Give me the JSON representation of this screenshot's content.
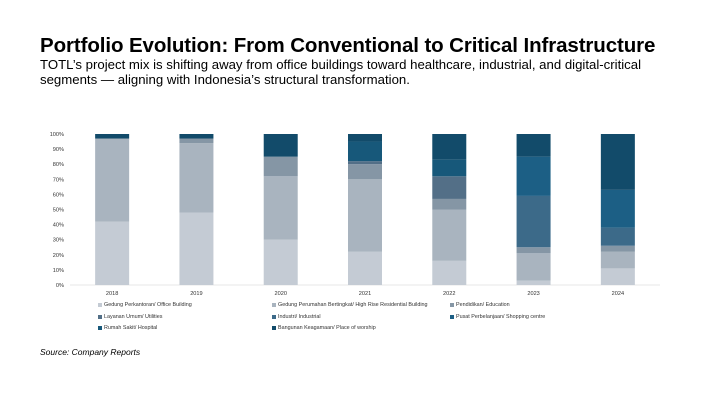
{
  "slide": {
    "title": "Portfolio Evolution: From Conventional to Critical Infrastructure",
    "subtitle": "TOTL’s project mix is shifting away from office buildings toward healthcare, industrial, and digital-critical segments — aligning with Indonesia’s structural transformation.",
    "source": "Source: Company Reports"
  },
  "chart_data": {
    "type": "bar",
    "stacked": true,
    "title": "",
    "xlabel": "",
    "ylabel": "",
    "ylim": [
      0,
      100
    ],
    "y_ticks": [
      "0%",
      "10%",
      "20%",
      "30%",
      "40%",
      "50%",
      "60%",
      "70%",
      "80%",
      "90%",
      "100%"
    ],
    "categories": [
      "2018",
      "2019",
      "2020",
      "2021",
      "2022",
      "2023",
      "2024"
    ],
    "series": [
      {
        "name": "Gedung Perkantoran/ Office Building",
        "color": "#c4cbd4",
        "values": [
          42,
          48,
          30,
          22,
          16,
          3,
          11
        ]
      },
      {
        "name": "Gedung Perumahan Bertingkat/ High Rise Residential Building",
        "color": "#a9b4bf",
        "values": [
          55,
          46,
          42,
          48,
          34,
          18,
          11
        ]
      },
      {
        "name": "Pendidikan/ Education",
        "color": "#8596a5",
        "values": [
          0,
          3,
          13,
          10,
          7,
          4,
          4
        ]
      },
      {
        "name": "Layanan Umum/ Utilities",
        "color": "#536f87",
        "values": [
          0,
          0,
          0,
          2,
          15,
          0,
          0
        ]
      },
      {
        "name": "Industri/ Industrial",
        "color": "#3c6a89",
        "values": [
          0,
          0,
          0,
          0,
          0,
          34,
          12
        ]
      },
      {
        "name": "Pusat Perbelanjaan/ Shopping centre",
        "color": "#1c5f85",
        "values": [
          0,
          0,
          0,
          0,
          0,
          26,
          25
        ]
      },
      {
        "name": "Rumah Sakit/ Hospital",
        "color": "#17587a",
        "values": [
          0,
          0,
          0,
          13,
          11,
          0,
          0
        ]
      },
      {
        "name": "Bangunan Keagamaan/ Place of worship",
        "color": "#124b6a",
        "values": [
          3,
          3,
          15,
          5,
          17,
          15,
          37
        ]
      }
    ],
    "legend_position": "bottom",
    "grid": false
  }
}
